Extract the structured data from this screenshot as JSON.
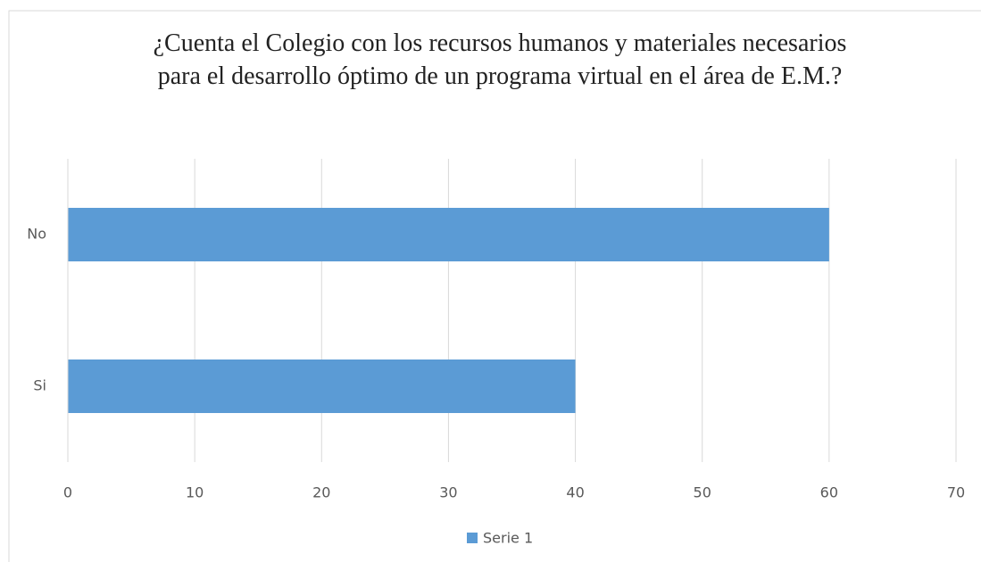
{
  "chart_data": {
    "type": "bar",
    "orientation": "horizontal",
    "title": "¿Cuenta el Colegio con los recursos humanos y materiales necesarios para el desarrollo óptimo de un programa virtual en el área de E.M.?",
    "categories": [
      "No",
      "Si"
    ],
    "series": [
      {
        "name": "Serie 1",
        "color": "#5b9bd5",
        "values": [
          60,
          40
        ]
      }
    ],
    "xlim": [
      0,
      70
    ],
    "xticks": [
      0,
      10,
      20,
      30,
      40,
      50,
      60,
      70
    ],
    "grid": true,
    "legend": "bottom"
  }
}
